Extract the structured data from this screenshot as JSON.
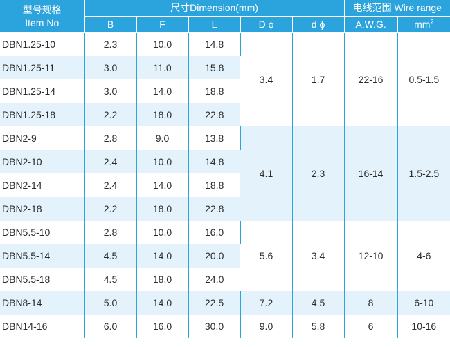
{
  "header": {
    "item_cn": "型号规格",
    "item_en": "Item No",
    "dimension_title": "尺寸Dimension(mm)",
    "wire_title": "电线范围 Wire range",
    "col_b": "B",
    "col_f": "F",
    "col_l": "L",
    "col_d_big": "D ϕ",
    "col_d_small": "d ϕ",
    "col_awg": "A.W.G.",
    "col_mm": "mm",
    "col_mm_sup": "2"
  },
  "groups": [
    {
      "D": "3.4",
      "d": "1.7",
      "awg": "22-16",
      "mm2": "0.5-1.5"
    },
    {
      "D": "4.1",
      "d": "2.3",
      "awg": "16-14",
      "mm2": "1.5-2.5"
    },
    {
      "D": "5.6",
      "d": "3.4",
      "awg": "12-10",
      "mm2": "4-6"
    },
    {
      "D": "7.2",
      "d": "4.5",
      "awg": "8",
      "mm2": "6-10"
    },
    {
      "D": "9.0",
      "d": "5.8",
      "awg": "6",
      "mm2": "10-16"
    }
  ],
  "rows": [
    {
      "model": "DBN1.25-10",
      "B": "2.3",
      "F": "10.0",
      "L": "14.8"
    },
    {
      "model": "DBN1.25-11",
      "B": "3.0",
      "F": "11.0",
      "L": "15.8"
    },
    {
      "model": "DBN1.25-14",
      "B": "3.0",
      "F": "14.0",
      "L": "18.8"
    },
    {
      "model": "DBN1.25-18",
      "B": "2.2",
      "F": "18.0",
      "L": "22.8"
    },
    {
      "model": "DBN2-9",
      "B": "2.8",
      "F": "9.0",
      "L": "13.8"
    },
    {
      "model": "DBN2-10",
      "B": "2.4",
      "F": "10.0",
      "L": "14.8"
    },
    {
      "model": "DBN2-14",
      "B": "2.4",
      "F": "14.0",
      "L": "18.8"
    },
    {
      "model": "DBN2-18",
      "B": "2.2",
      "F": "18.0",
      "L": "22.8"
    },
    {
      "model": "DBN5.5-10",
      "B": "2.8",
      "F": "10.0",
      "L": "16.0"
    },
    {
      "model": "DBN5.5-14",
      "B": "4.5",
      "F": "14.0",
      "L": "20.0"
    },
    {
      "model": "DBN5.5-18",
      "B": "4.5",
      "F": "18.0",
      "L": "24.0"
    },
    {
      "model": "DBN8-14",
      "B": "5.0",
      "F": "14.0",
      "L": "22.5"
    },
    {
      "model": "DBN14-16",
      "B": "6.0",
      "F": "16.0",
      "L": "30.0"
    }
  ]
}
